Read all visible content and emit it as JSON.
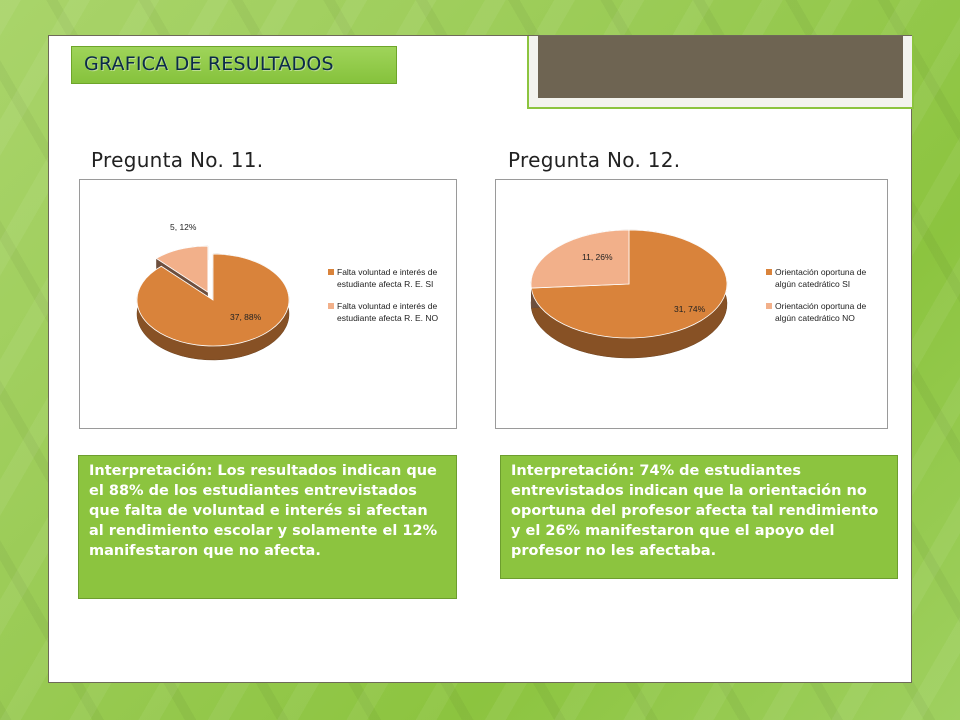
{
  "title": "GRAFICA DE RESULTADOS",
  "colors": {
    "orange": "#d9833b",
    "salmon": "#f2b08a",
    "green_box": "#8cc43f"
  },
  "charts": [
    {
      "label": "Pregunta No. 11.",
      "interpretation": "Interpretación: Los resultados indican que el 88% de los estudiantes entrevistados que falta de voluntad e interés si afectan al rendimiento escolar y solamente el 12% manifestaron que no afecta."
    },
    {
      "label": "Pregunta No. 12.",
      "interpretation": "Interpretación: 74% de estudiantes entrevistados indican que la orientación no oportuna del profesor afecta tal rendimiento y el 26% manifestaron que el apoyo del profesor no les afectaba."
    }
  ],
  "chart_data": [
    {
      "type": "pie",
      "categories": [
        "Falta voluntad e interés de estudiante afecta R. E. SI",
        "Falta voluntad e interés de estudiante afecta R. E. NO"
      ],
      "legend_lines": [
        [
          "Falta voluntad e interés de",
          "estudiante afecta R. E. SI"
        ],
        [
          "Falta voluntad e interés de",
          "estudiante afecta R. E. NO"
        ]
      ],
      "values": [
        37,
        5
      ],
      "percent": [
        88,
        12
      ],
      "data_labels": [
        "37, 88%",
        "5, 12%"
      ],
      "exploded": [
        false,
        true
      ],
      "legend_position": "right"
    },
    {
      "type": "pie",
      "categories": [
        "Orientación oportuna de algún catedrático SI",
        "Orientación oportuna de algún catedrático NO"
      ],
      "legend_lines": [
        [
          "Orientación oportuna de",
          "algún catedrático  SI"
        ],
        [
          "Orientación oportuna de",
          "algún catedrático  NO"
        ]
      ],
      "values": [
        31,
        11
      ],
      "percent": [
        74,
        26
      ],
      "data_labels": [
        "31, 74%",
        "11, 26%"
      ],
      "exploded": [
        false,
        false
      ],
      "legend_position": "right"
    }
  ]
}
